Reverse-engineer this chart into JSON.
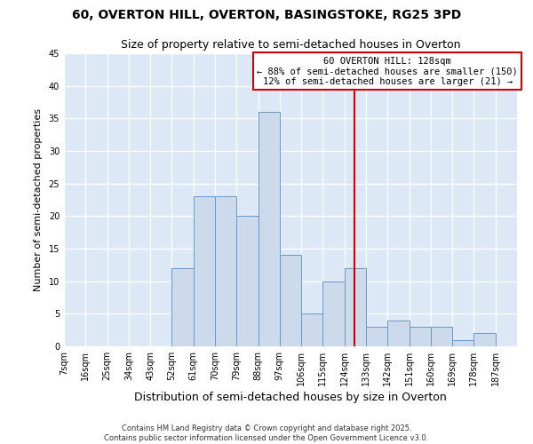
{
  "title": "60, OVERTON HILL, OVERTON, BASINGSTOKE, RG25 3PD",
  "subtitle": "Size of property relative to semi-detached houses in Overton",
  "xlabel": "Distribution of semi-detached houses by size in Overton",
  "ylabel": "Number of semi-detached properties",
  "bin_edges": [
    7,
    16,
    25,
    34,
    43,
    52,
    61,
    70,
    79,
    88,
    97,
    106,
    115,
    124,
    133,
    142,
    151,
    160,
    169,
    178,
    187
  ],
  "counts": [
    0,
    0,
    0,
    0,
    0,
    12,
    23,
    23,
    20,
    36,
    14,
    5,
    10,
    12,
    3,
    4,
    3,
    3,
    1,
    2
  ],
  "bar_facecolor": "#ccdaeb",
  "bar_edgecolor": "#6699cc",
  "vline_x": 128,
  "vline_color": "#cc0000",
  "annotation_text": "60 OVERTON HILL: 128sqm\n← 88% of semi-detached houses are smaller (150)\n12% of semi-detached houses are larger (21) →",
  "annotation_box_facecolor": "#ffffff",
  "annotation_box_edgecolor": "#cc0000",
  "xlim": [
    7,
    196
  ],
  "ylim": [
    0,
    45
  ],
  "yticks": [
    0,
    5,
    10,
    15,
    20,
    25,
    30,
    35,
    40,
    45
  ],
  "background_color": "#dce8f5",
  "grid_color": "#ffffff",
  "footer_line1": "Contains HM Land Registry data © Crown copyright and database right 2025.",
  "footer_line2": "Contains public sector information licensed under the Open Government Licence v3.0.",
  "title_fontsize": 10,
  "subtitle_fontsize": 9,
  "xlabel_fontsize": 9,
  "ylabel_fontsize": 8,
  "tick_fontsize": 7,
  "annotation_fontsize": 7.5,
  "footer_fontsize": 6
}
